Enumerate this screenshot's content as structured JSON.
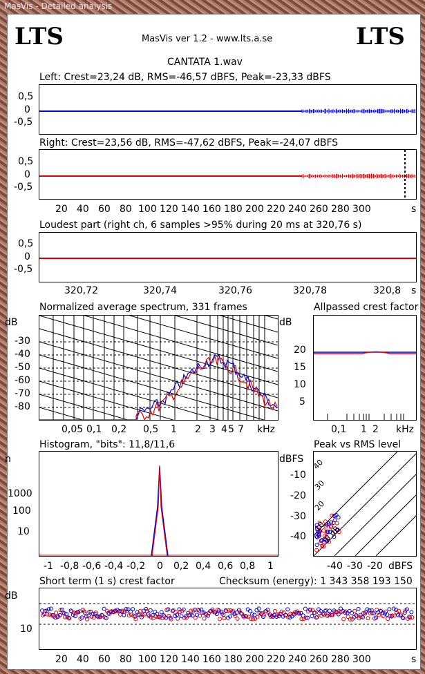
{
  "window": {
    "title": "MasVis - Detailed analysis"
  },
  "header": {
    "logo_left": "LTS",
    "logo_right": "LTS",
    "version": "MasVis ver 1.2 - www.lts.a.se",
    "filename": "CANTATA 1.wav"
  },
  "left": {
    "title": "Left: Crest=23,24 dB, RMS=-46,57 dBFS, Peak=-23,33 dBFS",
    "yticks": [
      "0,5",
      "0",
      "-0,5"
    ]
  },
  "right": {
    "title": "Right: Crest=23,56 dB, RMS=-47,62 dBFS, Peak=-24,07 dBFS",
    "yticks": [
      "0,5",
      "0",
      "-0,5"
    ],
    "xticks": [
      "20",
      "40",
      "60",
      "80",
      "100",
      "120",
      "140",
      "160",
      "180",
      "200",
      "220",
      "240",
      "260",
      "280",
      "300"
    ],
    "xunit": "s"
  },
  "loudest": {
    "title": "Loudest part (right ch, 6 samples >95% during 20 ms at 320,76 s)",
    "yticks": [
      "0,5",
      "0",
      "-0,5"
    ],
    "xticks": [
      "320,72",
      "320,74",
      "320,76",
      "320,78",
      "320,8"
    ],
    "xunit": "s"
  },
  "spectrum": {
    "title": "Normalized average spectrum, 331 frames",
    "ylabel": "dB",
    "yticks": [
      "-30",
      "-40",
      "-50",
      "-60",
      "-70",
      "-80"
    ],
    "xticks": [
      "0,05",
      "0,1",
      "0,2",
      "0,5",
      "1",
      "2",
      "3",
      "4",
      "5",
      "7"
    ],
    "xunit": "kHz"
  },
  "allpass": {
    "title": "Allpassed crest factor",
    "ylabel": "dB",
    "yticks": [
      "20",
      "15",
      "10",
      "5"
    ],
    "xticks": [
      "0,1",
      "1",
      "2"
    ],
    "xunit": "kHz"
  },
  "histogram": {
    "title": "Histogram, \"bits\": 11,8/11,6",
    "ylabel": "n",
    "yticks": [
      "1000",
      "100",
      "10"
    ],
    "xticks": [
      "-1",
      "-0,8",
      "-0,6",
      "-0,4",
      "-0,2",
      "0",
      "0,2",
      "0,4",
      "0,6",
      "0,8",
      "1"
    ]
  },
  "peakrms": {
    "title": "Peak vs RMS level",
    "ylabel": "dBFS",
    "yticks": [
      "-10",
      "-20",
      "-30",
      "-40"
    ],
    "xticks": [
      "-40",
      "-30",
      "-20"
    ],
    "xunit": "dBFS",
    "diag_labels": [
      "40",
      "30",
      "20",
      "10",
      "0 dB"
    ]
  },
  "shortterm": {
    "title": "Short term (1 s) crest factor",
    "checksum": "Checksum (energy):   1 343 358 193 150",
    "ylabel": "dB",
    "yticks": [
      "10"
    ],
    "xticks": [
      "20",
      "40",
      "60",
      "80",
      "100",
      "120",
      "140",
      "160",
      "180",
      "200",
      "220",
      "240",
      "260",
      "280",
      "300"
    ],
    "xunit": "s"
  },
  "colors": {
    "left": "#0000e0",
    "right": "#e00000",
    "grid": "#000000"
  }
}
